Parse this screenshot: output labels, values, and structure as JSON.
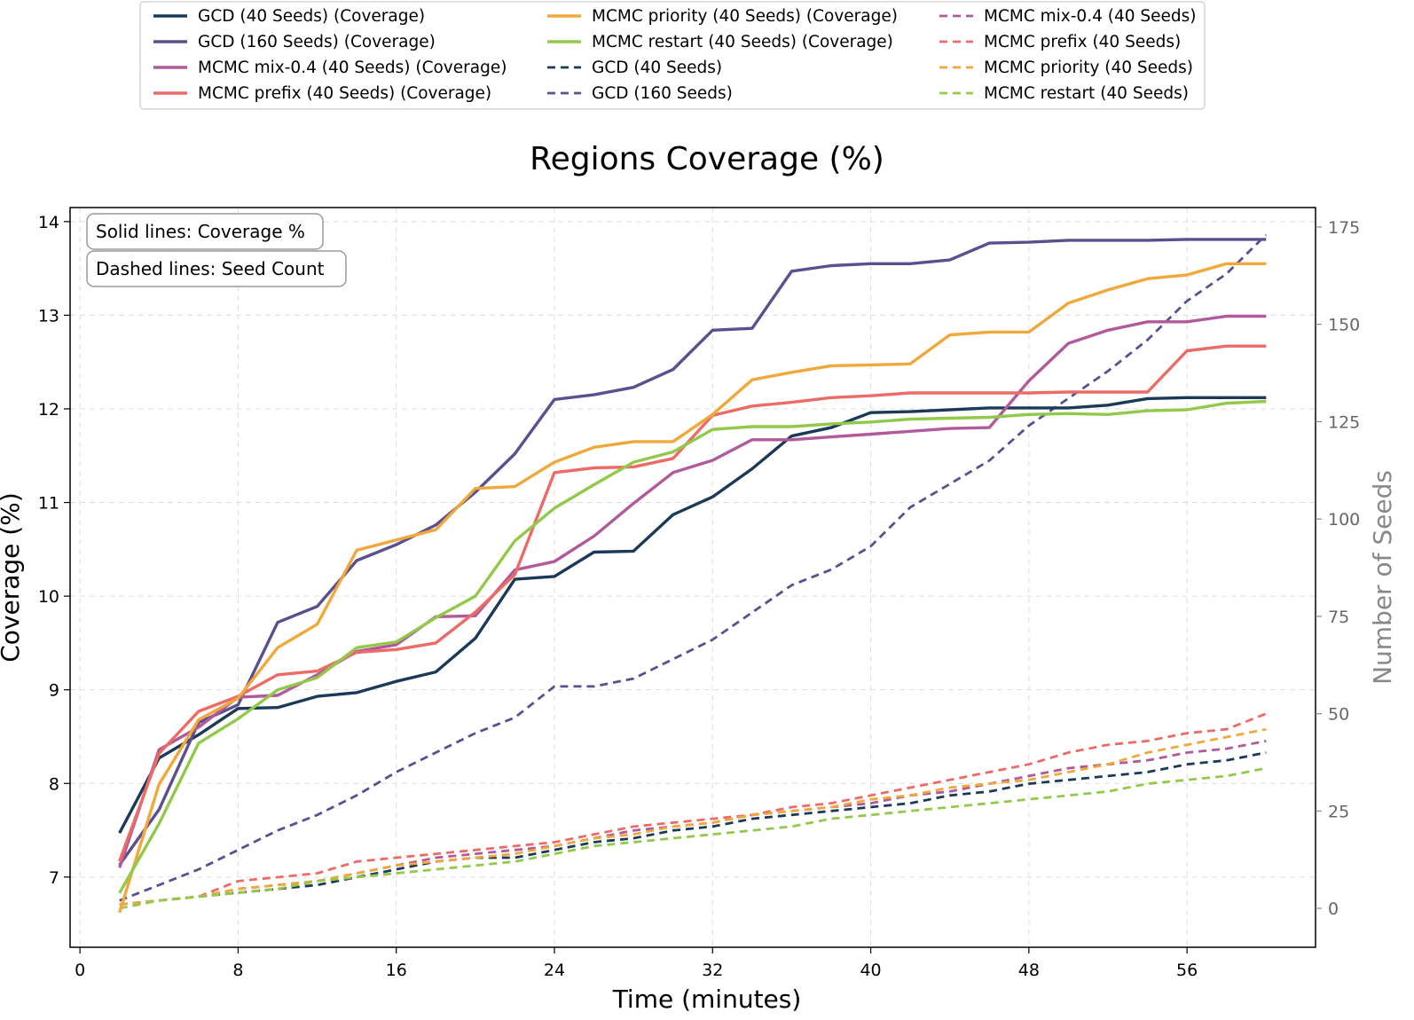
{
  "chart_data": {
    "type": "line",
    "title": "Regions Coverage (%)",
    "xlabel": "Time (minutes)",
    "ylabel": "Coverage (%)",
    "y2label": "Number of Seeds",
    "xlim": [
      -0.5,
      62.5
    ],
    "ylim": [
      6.25,
      14.15
    ],
    "y2lim": [
      -10,
      180
    ],
    "xticks": [
      "0",
      "8",
      "16",
      "24",
      "32",
      "40",
      "48",
      "56"
    ],
    "yticks": [
      "7",
      "8",
      "9",
      "10",
      "11",
      "12",
      "13",
      "14"
    ],
    "y2ticks": [
      "0",
      "25",
      "50",
      "75",
      "100",
      "125",
      "150",
      "175"
    ],
    "grid": true,
    "legend_position": "above plot, 3 columns",
    "annotations": [
      "Solid lines: Coverage %",
      "Dashed lines: Seed Count"
    ],
    "x": [
      2,
      4,
      6,
      8,
      10,
      12,
      14,
      16,
      18,
      20,
      22,
      24,
      26,
      28,
      30,
      32,
      34,
      36,
      38,
      40,
      42,
      44,
      46,
      48,
      50,
      52,
      54,
      56,
      58,
      60
    ],
    "coverage_series": [
      {
        "name": "GCD (40 Seeds) (Coverage)",
        "color": "#1b3a57",
        "values": [
          7.47,
          8.27,
          8.52,
          8.8,
          8.81,
          8.93,
          8.97,
          9.09,
          9.19,
          9.55,
          10.18,
          10.21,
          10.47,
          10.48,
          10.87,
          11.06,
          11.36,
          11.71,
          11.8,
          11.96,
          11.97,
          11.99,
          12.01,
          12.01,
          12.01,
          12.04,
          12.11,
          12.12,
          12.12,
          12.12
        ]
      },
      {
        "name": "GCD (160 Seeds) (Coverage)",
        "color": "#5b4f8f",
        "values": [
          7.13,
          7.72,
          8.65,
          8.84,
          9.72,
          9.89,
          10.38,
          10.55,
          10.76,
          11.11,
          11.52,
          12.1,
          12.15,
          12.23,
          12.42,
          12.84,
          12.86,
          13.47,
          13.53,
          13.55,
          13.55,
          13.59,
          13.77,
          13.78,
          13.8,
          13.8,
          13.8,
          13.81,
          13.81,
          13.81
        ]
      },
      {
        "name": "MCMC mix-0.4 (40 Seeds) (Coverage)",
        "color": "#b05a9c",
        "values": [
          7.1,
          8.36,
          8.6,
          8.92,
          8.94,
          9.16,
          9.41,
          9.48,
          9.78,
          9.79,
          10.28,
          10.37,
          10.64,
          10.99,
          11.32,
          11.45,
          11.67,
          11.67,
          11.7,
          11.73,
          11.76,
          11.79,
          11.8,
          12.3,
          12.7,
          12.84,
          12.93,
          12.93,
          12.99,
          12.99
        ]
      },
      {
        "name": "MCMC prefix (40 Seeds) (Coverage)",
        "color": "#ec6b66",
        "values": [
          7.17,
          8.32,
          8.77,
          8.93,
          9.16,
          9.2,
          9.4,
          9.43,
          9.5,
          9.83,
          10.23,
          11.32,
          11.37,
          11.38,
          11.47,
          11.93,
          12.03,
          12.07,
          12.12,
          12.14,
          12.17,
          12.17,
          12.17,
          12.17,
          12.18,
          12.18,
          12.18,
          12.62,
          12.67,
          12.67
        ]
      },
      {
        "name": "MCMC priority (40 Seeds) (Coverage)",
        "color": "#f0a83a",
        "values": [
          6.62,
          7.99,
          8.68,
          8.91,
          9.45,
          9.7,
          10.49,
          10.6,
          10.71,
          11.15,
          11.17,
          11.43,
          11.59,
          11.65,
          11.65,
          11.94,
          12.31,
          12.39,
          12.46,
          12.47,
          12.48,
          12.79,
          12.82,
          12.82,
          13.13,
          13.27,
          13.39,
          13.43,
          13.55,
          13.55
        ]
      },
      {
        "name": "MCMC restart (40 Seeds) (Coverage)",
        "color": "#93c94a",
        "values": [
          6.83,
          7.57,
          8.43,
          8.69,
          9.0,
          9.13,
          9.45,
          9.51,
          9.77,
          10.0,
          10.59,
          10.94,
          11.19,
          11.43,
          11.54,
          11.78,
          11.81,
          11.81,
          11.84,
          11.86,
          11.89,
          11.9,
          11.91,
          11.94,
          11.95,
          11.94,
          11.98,
          11.99,
          12.06,
          12.08
        ]
      }
    ],
    "seed_series": [
      {
        "name": "GCD (40 Seeds)",
        "color": "#1b3a57",
        "values": [
          1,
          2,
          3,
          4,
          5,
          6,
          8,
          10,
          12,
          13,
          13,
          15,
          17,
          18,
          20,
          21,
          23,
          24,
          25,
          26,
          27,
          29,
          30,
          32,
          33,
          34,
          35,
          37,
          38,
          40
        ]
      },
      {
        "name": "GCD (160 Seeds)",
        "color": "#5b4f8f",
        "values": [
          2,
          6,
          10,
          15,
          20,
          24,
          29,
          35,
          40,
          45,
          49,
          57,
          57,
          59,
          64,
          69,
          76,
          83,
          87,
          93,
          103,
          109,
          115,
          124,
          131,
          138,
          146,
          156,
          163,
          173
        ]
      },
      {
        "name": "MCMC mix-0.4 (40 Seeds)",
        "color": "#b05a9c",
        "values": [
          1,
          2,
          3,
          5,
          6,
          7,
          9,
          11,
          13,
          14,
          15,
          16,
          18,
          20,
          21,
          22,
          24,
          25,
          26,
          27,
          29,
          30,
          32,
          34,
          36,
          37,
          38,
          40,
          41,
          43
        ]
      },
      {
        "name": "MCMC prefix (40 Seeds)",
        "color": "#ec6b66",
        "values": [
          1,
          2,
          3,
          7,
          8,
          9,
          12,
          13,
          14,
          15,
          16,
          17,
          19,
          21,
          22,
          23,
          24,
          26,
          27,
          29,
          31,
          33,
          35,
          37,
          40,
          42,
          43,
          45,
          46,
          50
        ]
      },
      {
        "name": "MCMC priority (40 Seeds)",
        "color": "#f0a83a",
        "values": [
          1,
          2,
          3,
          5,
          6,
          7,
          9,
          11,
          12,
          13,
          14,
          16,
          18,
          19,
          21,
          22,
          24,
          25,
          26,
          28,
          29,
          31,
          32,
          33,
          35,
          37,
          40,
          42,
          44,
          46
        ]
      },
      {
        "name": "MCMC restart (40 Seeds)",
        "color": "#93c94a",
        "values": [
          0,
          2,
          3,
          4,
          5,
          7,
          8,
          9,
          10,
          11,
          12,
          14,
          16,
          17,
          18,
          19,
          20,
          21,
          23,
          24,
          25,
          26,
          27,
          28,
          29,
          30,
          32,
          33,
          34,
          36
        ]
      }
    ]
  }
}
